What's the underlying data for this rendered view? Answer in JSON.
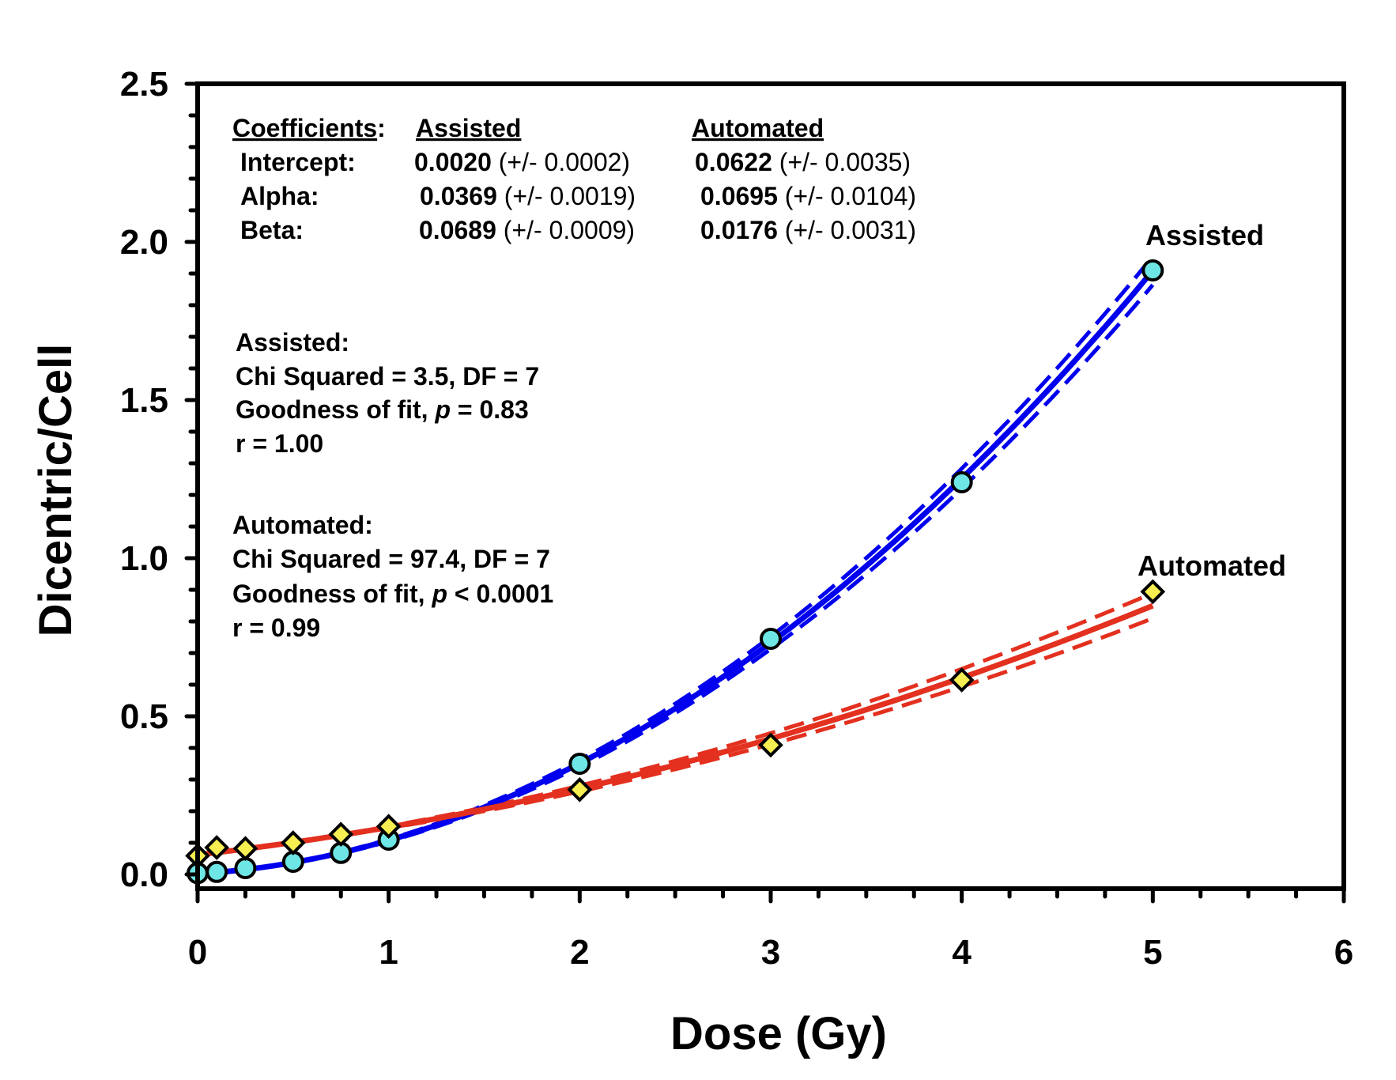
{
  "chart_data": {
    "type": "scatter",
    "xlabel": "Dose (Gy)",
    "ylabel": "Dicentric/Cell",
    "xlim": [
      0,
      6
    ],
    "ylim": [
      0,
      2.5
    ],
    "xticks": [
      "0",
      "1",
      "2",
      "3",
      "4",
      "5",
      "6"
    ],
    "yticks": [
      "0.0",
      "0.5",
      "1.0",
      "1.5",
      "2.0",
      "2.5"
    ],
    "grid": false,
    "confidence_bands": true,
    "series": [
      {
        "name": "Assisted",
        "marker": "circle",
        "color": "#0000ee",
        "marker_color": "#6fe6e6",
        "x": [
          0,
          0.1,
          0.25,
          0.5,
          0.75,
          1,
          2,
          3,
          4,
          5
        ],
        "y": [
          0.004,
          0.008,
          0.02,
          0.04,
          0.068,
          0.11,
          0.35,
          0.745,
          1.24,
          1.91
        ],
        "fit": {
          "intercept": 0.002,
          "alpha": 0.0369,
          "beta": 0.0689
        }
      },
      {
        "name": "Automated",
        "marker": "diamond",
        "color": "#e3301f",
        "marker_color": "#f7ef52",
        "x": [
          0,
          0.1,
          0.25,
          0.5,
          0.75,
          1,
          2,
          3,
          4,
          5
        ],
        "y": [
          0.059,
          0.085,
          0.082,
          0.1,
          0.127,
          0.152,
          0.268,
          0.409,
          0.615,
          0.894
        ],
        "fit": {
          "intercept": 0.0622,
          "alpha": 0.0695,
          "beta": 0.0176
        }
      }
    ],
    "annotations": {
      "coef_header": "Coefficients",
      "coef_colon": ":",
      "col_assisted": "Assisted",
      "col_automated": "Automated",
      "rows": [
        {
          "label": "Intercept:",
          "assisted": "0.0020",
          "assisted_err": "(+/- 0.0002)",
          "automated": "0.0622",
          "automated_err": "(+/- 0.0035)"
        },
        {
          "label": "Alpha:",
          "assisted": "0.0369",
          "assisted_err": "(+/- 0.0019)",
          "automated": "0.0695",
          "automated_err": "(+/- 0.0104)"
        },
        {
          "label": "Beta:",
          "assisted": "0.0689",
          "assisted_err": "(+/- 0.0009)",
          "automated": "0.0176",
          "automated_err": "(+/- 0.0031)"
        }
      ],
      "assisted_stats": {
        "title": "Assisted:",
        "chi": "Chi Squared = 3.5, DF = 7",
        "gof_prefix": "Goodness of fit, ",
        "gof_p": "p",
        "gof_value": " = 0.83",
        "r": "r = 1.00"
      },
      "automated_stats": {
        "title": "Automated:",
        "chi": "Chi Squared = 97.4, DF = 7",
        "gof_prefix": "Goodness of fit, ",
        "gof_p": "p",
        "gof_value": " < 0.0001",
        "r": "r = 0.99"
      },
      "label_assisted": "Assisted",
      "label_automated": "Automated"
    }
  }
}
